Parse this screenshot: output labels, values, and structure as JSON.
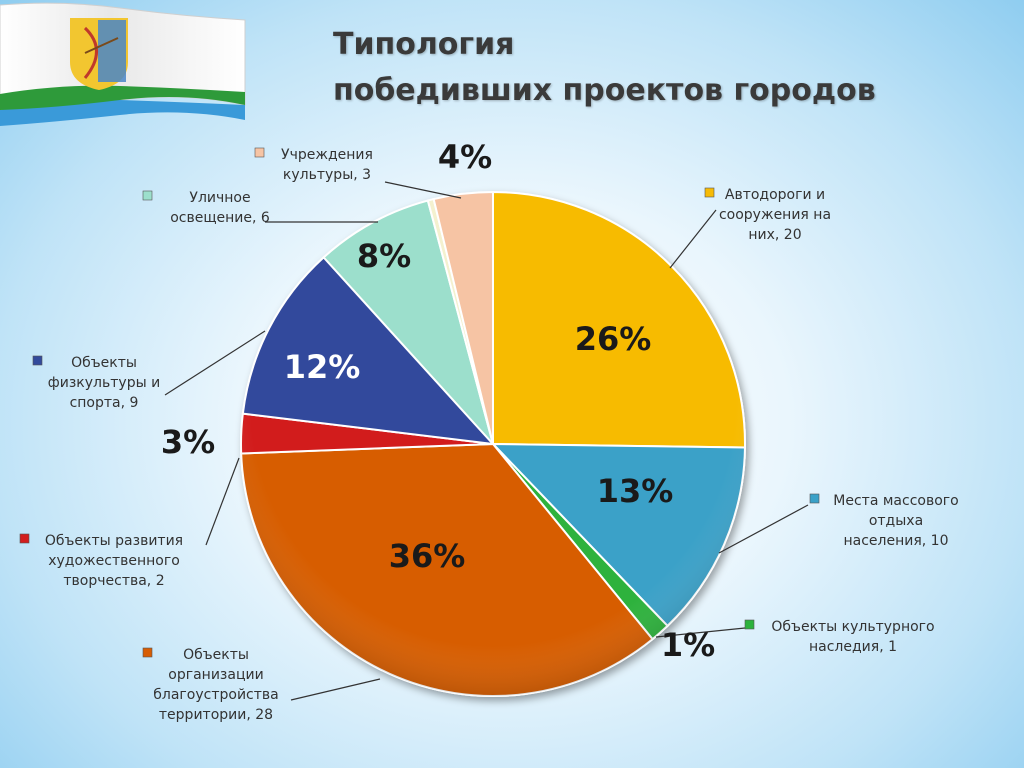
{
  "title": [
    "Типология",
    "победивших проектов  городов"
  ],
  "flag": {
    "colors": {
      "white": "#ffffff",
      "blue": "#3a9ad9",
      "green": "#2e9a3a",
      "emblem": "#f2c630",
      "emblem_red": "#c0392b",
      "emblem_blue": "#4a86c8"
    },
    "icon": "kirov-region-flag-icon"
  },
  "chart_data": {
    "type": "pie",
    "title": "Типология победивших проектов  городов",
    "start_angle_deg": 0,
    "direction": "clockwise",
    "slices": [
      {
        "label_lines": [
          "Автодороги и",
          "сооружения на",
          "них, 20"
        ],
        "value": 20,
        "percent_label": "26%",
        "color": "#f7bb06"
      },
      {
        "label_lines": [
          "Места массового",
          "отдыха",
          "населения, 10"
        ],
        "value": 10,
        "percent_label": "13%",
        "color": "#3aa1c8"
      },
      {
        "label_lines": [
          "Объекты культурного",
          "наследия, 1"
        ],
        "value": 1,
        "percent_label": "1%",
        "color": "#2db23c"
      },
      {
        "label_lines": [
          "Объекты",
          "организации",
          "благоустройства",
          "территории, 28"
        ],
        "value": 28,
        "percent_label": "36%",
        "color": "#d75d04"
      },
      {
        "label_lines": [
          "Объекты развития",
          "художественного",
          "творчества, 2"
        ],
        "value": 2,
        "percent_label": "3%",
        "color": "#d21e1e"
      },
      {
        "label_lines": [
          "Объекты",
          "физкультуры и",
          "спорта, 9"
        ],
        "value": 9,
        "percent_label": "12%",
        "color": "#324a9c"
      },
      {
        "label_lines": [
          "Уличное",
          "освещение, 6"
        ],
        "value": 6,
        "percent_label": "8%",
        "color": "#9cdfcc"
      },
      {
        "label_lines": [
          "",
          ""
        ],
        "value": 0.3,
        "percent_label": "",
        "color": "#f4f1cf"
      },
      {
        "label_lines": [
          "Учреждения",
          "культуры, 3"
        ],
        "value": 3,
        "percent_label": "4%",
        "color": "#f6c4a4"
      }
    ]
  }
}
